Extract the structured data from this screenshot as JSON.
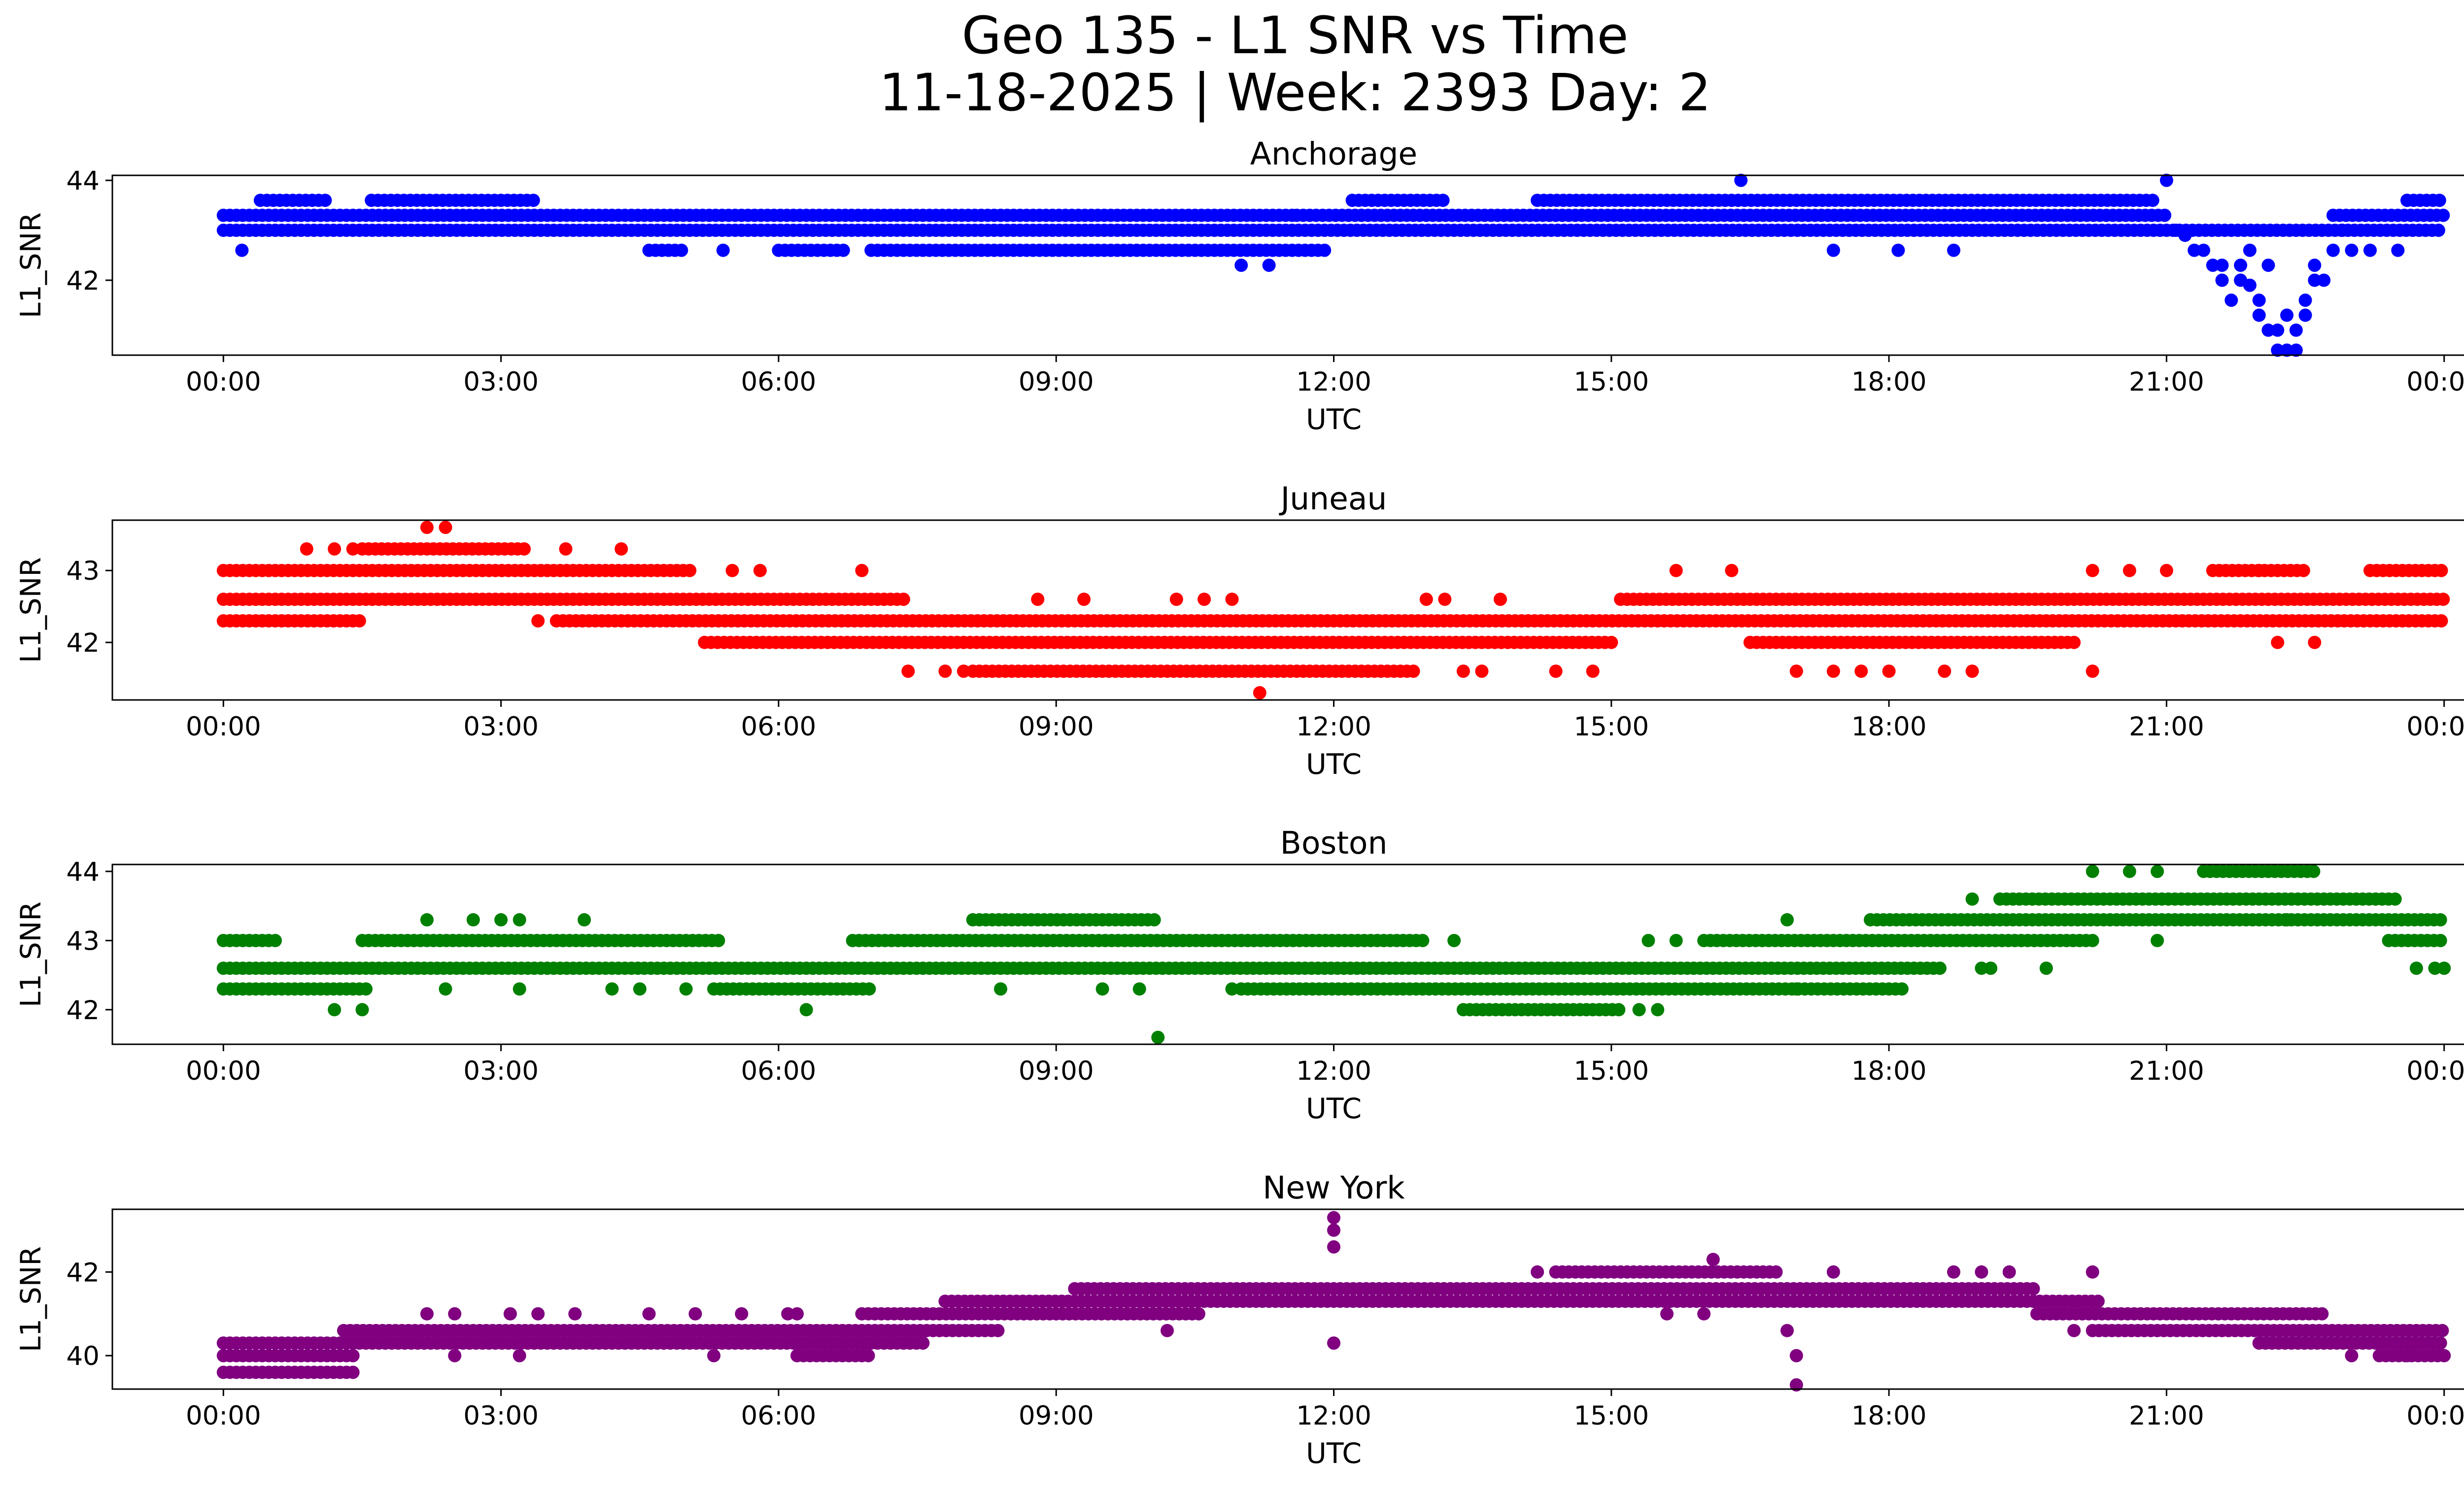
{
  "figure": {
    "title_line1": "Geo 135 - L1 SNR vs Time",
    "title_line2": "11-18-2025 | Week: 2393 Day: 2"
  },
  "chart_data": [
    {
      "type": "scatter",
      "title": "Anchorage",
      "xlabel": "UTC",
      "ylabel": "L1_SNR",
      "color": "#0000ff",
      "x_ticks": [
        "00:00",
        "03:00",
        "06:00",
        "09:00",
        "12:00",
        "15:00",
        "18:00",
        "21:00",
        "00:00"
      ],
      "xlim_hours": [
        -1.2,
        25.2
      ],
      "y_ticks": [
        42,
        44
      ],
      "ylim": [
        40.5,
        44.1
      ],
      "levels": [
        {
          "y": 43.0,
          "segments": [
            [
              0.0,
              24.0
            ]
          ]
        },
        {
          "y": 43.3,
          "segments": [
            [
              0.0,
              11.6
            ],
            [
              11.6,
              12.3
            ],
            [
              12.3,
              21.0
            ],
            [
              22.8,
              24.0
            ]
          ]
        },
        {
          "y": 42.6,
          "segments": [
            [
              4.6,
              5.0
            ],
            [
              6.0,
              6.7
            ],
            [
              7.0,
              11.9
            ]
          ]
        },
        {
          "y": 43.6,
          "segments": [
            [
              0.4,
              1.1
            ],
            [
              1.6,
              3.4
            ],
            [
              12.2,
              13.2
            ],
            [
              14.2,
              20.9
            ],
            [
              23.6,
              24.0
            ]
          ]
        }
      ],
      "points": [
        [
          0.2,
          42.6
        ],
        [
          5.4,
          42.6
        ],
        [
          11.0,
          42.3
        ],
        [
          11.3,
          42.3
        ],
        [
          16.4,
          44.0
        ],
        [
          17.4,
          42.6
        ],
        [
          18.1,
          42.6
        ],
        [
          18.7,
          42.6
        ],
        [
          21.0,
          44.0
        ],
        [
          21.1,
          43.0
        ],
        [
          21.2,
          42.9
        ],
        [
          21.3,
          42.6
        ],
        [
          21.4,
          42.6
        ],
        [
          21.5,
          42.3
        ],
        [
          21.6,
          42.0
        ],
        [
          21.6,
          42.3
        ],
        [
          21.7,
          41.6
        ],
        [
          21.8,
          42.3
        ],
        [
          21.8,
          42.0
        ],
        [
          21.9,
          41.9
        ],
        [
          21.9,
          42.6
        ],
        [
          22.0,
          41.6
        ],
        [
          22.0,
          41.3
        ],
        [
          22.1,
          42.3
        ],
        [
          22.1,
          41.0
        ],
        [
          22.2,
          41.0
        ],
        [
          22.2,
          40.6
        ],
        [
          22.3,
          41.3
        ],
        [
          22.3,
          40.6
        ],
        [
          22.4,
          40.6
        ],
        [
          22.4,
          41.0
        ],
        [
          22.5,
          41.3
        ],
        [
          22.5,
          41.6
        ],
        [
          22.6,
          42.0
        ],
        [
          22.6,
          42.3
        ],
        [
          22.7,
          42.0
        ],
        [
          22.8,
          42.6
        ],
        [
          22.9,
          43.0
        ],
        [
          23.0,
          42.6
        ],
        [
          23.2,
          42.6
        ],
        [
          23.5,
          42.6
        ],
        [
          23.6,
          43.6
        ]
      ]
    },
    {
      "type": "scatter",
      "title": "Juneau",
      "xlabel": "UTC",
      "ylabel": "L1_SNR",
      "color": "#ff0000",
      "x_ticks": [
        "00:00",
        "03:00",
        "06:00",
        "09:00",
        "12:00",
        "15:00",
        "18:00",
        "21:00",
        "00:00"
      ],
      "xlim_hours": [
        -1.2,
        25.2
      ],
      "y_ticks": [
        42,
        43
      ],
      "ylim": [
        41.2,
        43.7
      ],
      "levels": [
        {
          "y": 42.6,
          "segments": [
            [
              0.0,
              7.4
            ],
            [
              15.1,
              24.0
            ]
          ]
        },
        {
          "y": 42.3,
          "segments": [
            [
              0.0,
              1.5
            ],
            [
              3.6,
              24.0
            ]
          ]
        },
        {
          "y": 43.0,
          "segments": [
            [
              0.0,
              5.1
            ],
            [
              21.5,
              22.5
            ],
            [
              23.2,
              24.0
            ]
          ]
        },
        {
          "y": 43.3,
          "segments": [
            [
              1.5,
              3.3
            ]
          ]
        },
        {
          "y": 42.0,
          "segments": [
            [
              5.2,
              15.0
            ],
            [
              16.5,
              20.0
            ]
          ]
        },
        {
          "y": 41.6,
          "segments": [
            [
              8.1,
              12.9
            ]
          ]
        }
      ],
      "points": [
        [
          0.9,
          43.3
        ],
        [
          1.2,
          43.3
        ],
        [
          1.4,
          43.3
        ],
        [
          2.2,
          43.6
        ],
        [
          2.4,
          43.6
        ],
        [
          3.7,
          43.3
        ],
        [
          4.3,
          43.3
        ],
        [
          3.4,
          42.3
        ],
        [
          5.5,
          43.0
        ],
        [
          5.8,
          43.0
        ],
        [
          6.9,
          43.0
        ],
        [
          7.4,
          41.6
        ],
        [
          7.8,
          41.6
        ],
        [
          8.0,
          41.6
        ],
        [
          8.8,
          42.6
        ],
        [
          9.3,
          42.6
        ],
        [
          10.3,
          42.6
        ],
        [
          10.6,
          42.6
        ],
        [
          10.9,
          42.6
        ],
        [
          11.2,
          41.3
        ],
        [
          13.0,
          42.6
        ],
        [
          13.2,
          42.6
        ],
        [
          13.4,
          41.6
        ],
        [
          13.6,
          41.6
        ],
        [
          13.8,
          42.6
        ],
        [
          14.4,
          41.6
        ],
        [
          14.8,
          41.6
        ],
        [
          15.7,
          43.0
        ],
        [
          16.3,
          43.0
        ],
        [
          17.0,
          41.6
        ],
        [
          17.4,
          41.6
        ],
        [
          17.7,
          41.6
        ],
        [
          18.0,
          41.6
        ],
        [
          18.6,
          41.6
        ],
        [
          18.9,
          41.6
        ],
        [
          20.2,
          43.0
        ],
        [
          20.2,
          41.6
        ],
        [
          20.6,
          43.0
        ],
        [
          22.0,
          43.0
        ],
        [
          22.2,
          42.0
        ],
        [
          22.6,
          42.0
        ],
        [
          21.0,
          43.0
        ]
      ]
    },
    {
      "type": "scatter",
      "title": "Boston",
      "xlabel": "UTC",
      "ylabel": "L1_SNR",
      "color": "#008000",
      "x_ticks": [
        "00:00",
        "03:00",
        "06:00",
        "09:00",
        "12:00",
        "15:00",
        "18:00",
        "21:00",
        "00:00"
      ],
      "xlim_hours": [
        -1.2,
        25.2
      ],
      "y_ticks": [
        42,
        43,
        44
      ],
      "ylim": [
        41.5,
        44.1
      ],
      "levels": [
        {
          "y": 42.6,
          "segments": [
            [
              0.0,
              18.6
            ]
          ]
        },
        {
          "y": 43.0,
          "segments": [
            [
              0.0,
              0.6
            ],
            [
              1.5,
              5.4
            ],
            [
              6.8,
              13.0
            ],
            [
              16.0,
              20.2
            ],
            [
              23.4,
              24.0
            ]
          ]
        },
        {
          "y": 42.3,
          "segments": [
            [
              0.0,
              1.6
            ],
            [
              5.3,
              7.0
            ],
            [
              11.0,
              18.2
            ]
          ]
        },
        {
          "y": 43.3,
          "segments": [
            [
              8.1,
              10.1
            ],
            [
              17.8,
              24.0
            ]
          ]
        },
        {
          "y": 42.0,
          "segments": [
            [
              13.4,
              15.1
            ]
          ]
        },
        {
          "y": 43.6,
          "segments": [
            [
              19.2,
              23.5
            ]
          ]
        },
        {
          "y": 44.0,
          "segments": [
            [
              21.4,
              22.6
            ]
          ]
        }
      ],
      "points": [
        [
          1.2,
          42.0
        ],
        [
          1.5,
          42.0
        ],
        [
          2.2,
          43.3
        ],
        [
          2.4,
          42.3
        ],
        [
          2.7,
          43.3
        ],
        [
          3.0,
          43.3
        ],
        [
          3.2,
          43.3
        ],
        [
          3.2,
          42.3
        ],
        [
          3.9,
          43.3
        ],
        [
          4.2,
          42.3
        ],
        [
          4.5,
          42.3
        ],
        [
          5.0,
          42.3
        ],
        [
          6.3,
          42.0
        ],
        [
          8.4,
          42.3
        ],
        [
          9.5,
          42.3
        ],
        [
          9.9,
          42.3
        ],
        [
          10.1,
          41.6
        ],
        [
          10.9,
          42.3
        ],
        [
          13.3,
          43.0
        ],
        [
          15.4,
          43.0
        ],
        [
          15.7,
          43.0
        ],
        [
          16.9,
          43.3
        ],
        [
          17.0,
          42.3
        ],
        [
          15.3,
          42.0
        ],
        [
          15.5,
          42.0
        ],
        [
          18.9,
          43.6
        ],
        [
          19.0,
          42.6
        ],
        [
          19.1,
          42.6
        ],
        [
          19.7,
          42.6
        ],
        [
          20.2,
          44.0
        ],
        [
          20.6,
          44.0
        ],
        [
          20.9,
          44.0
        ],
        [
          20.9,
          43.0
        ],
        [
          22.3,
          43.3
        ],
        [
          22.7,
          43.3
        ],
        [
          23.7,
          42.6
        ],
        [
          23.9,
          42.6
        ],
        [
          24.0,
          42.6
        ]
      ]
    },
    {
      "type": "scatter",
      "title": "New York",
      "xlabel": "UTC",
      "ylabel": "L1_SNR",
      "color": "#800080",
      "x_ticks": [
        "00:00",
        "03:00",
        "06:00",
        "09:00",
        "12:00",
        "15:00",
        "18:00",
        "21:00",
        "00:00"
      ],
      "xlim_hours": [
        -1.2,
        25.2
      ],
      "y_ticks": [
        40,
        42
      ],
      "ylim": [
        39.2,
        43.5
      ],
      "levels": [
        {
          "y": 40.3,
          "segments": [
            [
              0.0,
              7.6
            ],
            [
              22.0,
              24.0
            ]
          ]
        },
        {
          "y": 40.0,
          "segments": [
            [
              0.0,
              1.4
            ],
            [
              6.2,
              7.0
            ],
            [
              23.3,
              24.0
            ]
          ]
        },
        {
          "y": 39.6,
          "segments": [
            [
              0.0,
              1.4
            ]
          ]
        },
        {
          "y": 40.6,
          "segments": [
            [
              1.3,
              8.4
            ],
            [
              20.2,
              24.0
            ]
          ]
        },
        {
          "y": 41.0,
          "segments": [
            [
              6.9,
              10.6
            ],
            [
              19.6,
              22.7
            ]
          ]
        },
        {
          "y": 41.3,
          "segments": [
            [
              7.8,
              20.3
            ]
          ]
        },
        {
          "y": 41.6,
          "segments": [
            [
              9.2,
              19.6
            ]
          ]
        },
        {
          "y": 42.0,
          "segments": [
            [
              14.4,
              16.8
            ]
          ]
        }
      ],
      "points": [
        [
          2.2,
          41.0
        ],
        [
          2.5,
          41.0
        ],
        [
          3.1,
          41.0
        ],
        [
          3.4,
          41.0
        ],
        [
          2.5,
          40.0
        ],
        [
          3.2,
          40.0
        ],
        [
          3.8,
          41.0
        ],
        [
          4.6,
          41.0
        ],
        [
          5.1,
          41.0
        ],
        [
          5.3,
          40.0
        ],
        [
          5.6,
          41.0
        ],
        [
          6.1,
          41.0
        ],
        [
          6.2,
          41.0
        ],
        [
          10.2,
          40.6
        ],
        [
          12.0,
          43.3
        ],
        [
          12.0,
          43.0
        ],
        [
          12.0,
          42.6
        ],
        [
          12.0,
          40.3
        ],
        [
          14.2,
          42.0
        ],
        [
          16.1,
          42.3
        ],
        [
          16.9,
          40.6
        ],
        [
          17.0,
          40.0
        ],
        [
          17.0,
          39.3
        ],
        [
          17.4,
          42.0
        ],
        [
          18.7,
          42.0
        ],
        [
          19.0,
          42.0
        ],
        [
          19.3,
          42.0
        ],
        [
          20.0,
          40.6
        ],
        [
          20.2,
          42.0
        ],
        [
          23.0,
          40.0
        ],
        [
          23.6,
          40.0
        ],
        [
          16.0,
          41.0
        ],
        [
          15.6,
          41.0
        ]
      ]
    }
  ]
}
